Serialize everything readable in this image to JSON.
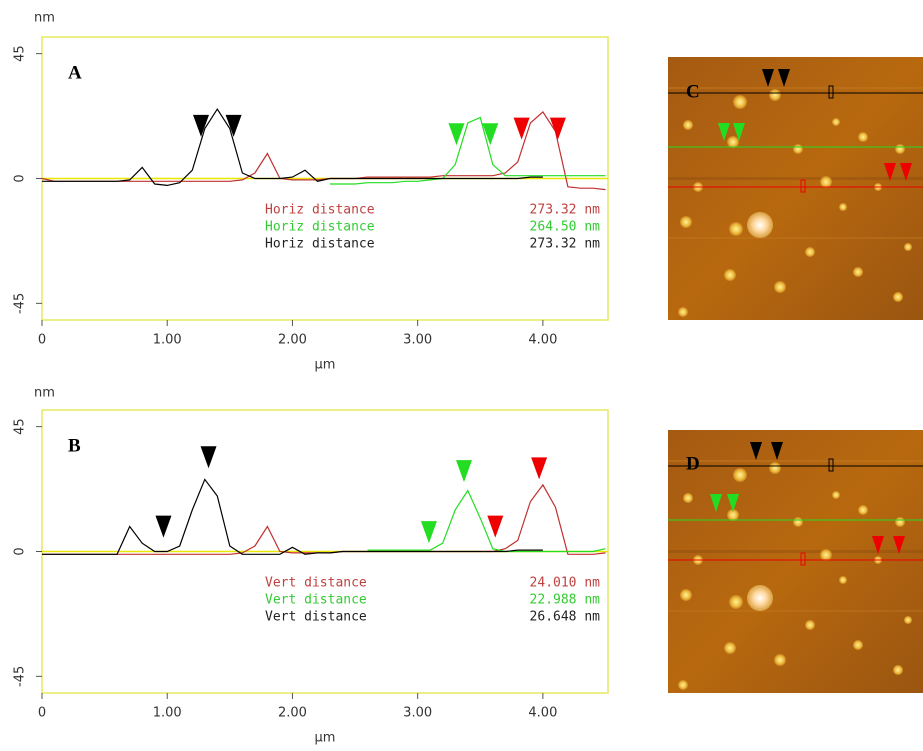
{
  "chart_data": [
    {
      "type": "line",
      "panel_label": "A",
      "y_axis_label": "nm",
      "x_axis_label": "µm",
      "xlim": [
        0,
        4.52
      ],
      "ylim": [
        -51,
        51
      ],
      "xticks": [
        0,
        {
          "value": 1,
          "label": "1.00"
        },
        {
          "value": 2,
          "label": "2.00"
        },
        {
          "value": 3,
          "label": "3.00"
        },
        {
          "value": 4,
          "label": "4.00"
        }
      ],
      "yticks": [
        -45,
        0,
        45
      ],
      "reference_line": {
        "value": 0,
        "color": "#e8e800"
      },
      "x": [
        0,
        0.1,
        0.2,
        0.3,
        0.4,
        0.5,
        0.6,
        0.7,
        0.8,
        0.9,
        1.0,
        1.1,
        1.2,
        1.3,
        1.4,
        1.5,
        1.6,
        1.7,
        1.8,
        1.9,
        2.0,
        2.1,
        2.2,
        2.3,
        2.4,
        2.5,
        2.6,
        2.7,
        2.8,
        2.9,
        3.0,
        3.1,
        3.2,
        3.3,
        3.4,
        3.5,
        3.6,
        3.7,
        3.8,
        3.9,
        4.0,
        4.1,
        4.2,
        4.3,
        4.4,
        4.5
      ],
      "series": [
        {
          "name": "red",
          "color": "#c03030",
          "values": [
            0,
            -1,
            -1,
            -1,
            -1,
            -1,
            -1,
            -1,
            -1,
            -1,
            -1,
            -1,
            -1,
            -1,
            -1,
            -1,
            -0.5,
            2,
            9,
            0,
            -0.5,
            -0.5,
            -0.5,
            0,
            0,
            0,
            0.5,
            0.5,
            0.5,
            0.5,
            0.5,
            0.5,
            1,
            1,
            1,
            1,
            1,
            2,
            6,
            20,
            24,
            17,
            -3,
            -3.5,
            -3.5,
            -4
          ]
        },
        {
          "name": "green",
          "color": "#22dd22",
          "values": [
            null,
            null,
            null,
            null,
            null,
            null,
            null,
            null,
            null,
            null,
            null,
            null,
            null,
            null,
            null,
            null,
            null,
            null,
            null,
            null,
            null,
            null,
            null,
            -2,
            -2,
            -2,
            -1.5,
            -1.5,
            -1.5,
            -1,
            -1,
            -0.5,
            0,
            5,
            20,
            22,
            5,
            1,
            1,
            1,
            1,
            1,
            1,
            1,
            1,
            1
          ]
        },
        {
          "name": "black",
          "color": "#000000",
          "values": [
            -1,
            -1,
            -1,
            -1,
            -1,
            -1,
            -1,
            -0.5,
            4,
            -2,
            -2.5,
            -1.5,
            3,
            18,
            25,
            18,
            2,
            0,
            0,
            0,
            0.5,
            3,
            -1,
            0,
            0,
            0,
            0,
            0,
            0,
            0,
            0,
            0,
            0,
            0,
            0,
            0,
            0,
            0,
            0,
            0.5,
            0.5,
            null,
            null,
            null,
            null,
            null
          ]
        }
      ],
      "markers": [
        {
          "x": 1.27,
          "y": 15,
          "color": "#000000"
        },
        {
          "x": 1.53,
          "y": 15,
          "color": "#000000"
        },
        {
          "x": 3.31,
          "y": 12,
          "color": "#22dd22"
        },
        {
          "x": 3.58,
          "y": 12,
          "color": "#22dd22"
        },
        {
          "x": 3.83,
          "y": 14,
          "color": "#ee0000"
        },
        {
          "x": 4.12,
          "y": 14,
          "color": "#ee0000"
        }
      ],
      "measurements": [
        {
          "label": "Horiz distance",
          "value": "273.32 nm",
          "color": "#c04040"
        },
        {
          "label": "Horiz distance",
          "value": "264.50 nm",
          "color": "#33cc33"
        },
        {
          "label": "Horiz distance",
          "value": "273.32 nm",
          "color": "#222222"
        }
      ]
    },
    {
      "type": "line",
      "panel_label": "B",
      "y_axis_label": "nm",
      "x_axis_label": "µm",
      "xlim": [
        0,
        4.52
      ],
      "ylim": [
        -51,
        51
      ],
      "xticks": [
        0,
        {
          "value": 1,
          "label": "1.00"
        },
        {
          "value": 2,
          "label": "2.00"
        },
        {
          "value": 3,
          "label": "3.00"
        },
        {
          "value": 4,
          "label": "4.00"
        }
      ],
      "yticks": [
        -45,
        0,
        45
      ],
      "reference_line": {
        "value": 0,
        "color": "#e8e800"
      },
      "x": [
        0,
        0.1,
        0.2,
        0.3,
        0.4,
        0.5,
        0.6,
        0.7,
        0.8,
        0.9,
        1.0,
        1.1,
        1.2,
        1.3,
        1.4,
        1.5,
        1.6,
        1.7,
        1.8,
        1.9,
        2.0,
        2.1,
        2.2,
        2.3,
        2.4,
        2.5,
        2.6,
        2.7,
        2.8,
        2.9,
        3.0,
        3.1,
        3.2,
        3.3,
        3.4,
        3.5,
        3.6,
        3.7,
        3.8,
        3.9,
        4.0,
        4.1,
        4.2,
        4.3,
        4.4,
        4.5
      ],
      "series": [
        {
          "name": "red",
          "color": "#c03030",
          "values": [
            -1,
            -1,
            -1,
            -1,
            -1,
            -1,
            -1,
            -1,
            -1,
            -1,
            -1,
            -1,
            -1,
            -1,
            -1,
            -1,
            -0.5,
            2,
            9,
            0,
            -0.5,
            -0.5,
            -0.5,
            -0.5,
            0,
            0,
            0,
            0,
            0,
            0,
            0,
            0,
            0,
            0,
            0,
            0,
            0,
            1,
            4,
            18,
            24,
            16,
            -1,
            -1,
            -1,
            -0.5
          ]
        },
        {
          "name": "green",
          "color": "#22dd22",
          "values": [
            null,
            null,
            null,
            null,
            null,
            null,
            null,
            null,
            null,
            null,
            null,
            null,
            null,
            null,
            null,
            null,
            null,
            null,
            null,
            null,
            null,
            null,
            null,
            null,
            null,
            null,
            0.5,
            0.5,
            0.5,
            0.5,
            0.5,
            0.5,
            3,
            15,
            22,
            12,
            1,
            0,
            0,
            0,
            0,
            0,
            0,
            0,
            0,
            1
          ]
        },
        {
          "name": "black",
          "color": "#000000",
          "values": [
            -1,
            -1,
            -1,
            -1,
            -1,
            -1,
            -1,
            9,
            3,
            0,
            0,
            2,
            15,
            26,
            20,
            2,
            -1,
            -1,
            -1,
            -1,
            1.5,
            -1,
            -0.5,
            -0.5,
            0,
            0,
            0,
            0,
            0,
            0,
            0,
            0,
            0,
            0,
            0,
            0,
            0,
            0,
            0.5,
            0.5,
            0.5,
            null,
            null,
            null,
            null,
            null
          ]
        }
      ],
      "markers": [
        {
          "x": 0.97,
          "y": 5,
          "color": "#000000"
        },
        {
          "x": 1.33,
          "y": 30,
          "color": "#000000"
        },
        {
          "x": 3.09,
          "y": 3,
          "color": "#22dd22"
        },
        {
          "x": 3.37,
          "y": 25,
          "color": "#22dd22"
        },
        {
          "x": 3.62,
          "y": 5,
          "color": "#ee0000"
        },
        {
          "x": 3.97,
          "y": 26,
          "color": "#ee0000"
        }
      ],
      "measurements": [
        {
          "label": "Vert distance",
          "value": "24.010 nm",
          "color": "#c04040"
        },
        {
          "label": "Vert distance",
          "value": "22.988 nm",
          "color": "#33cc33"
        },
        {
          "label": "Vert distance",
          "value": "26.648 nm",
          "color": "#222222"
        }
      ]
    }
  ],
  "images": [
    {
      "label": "C"
    },
    {
      "label": "D"
    }
  ]
}
